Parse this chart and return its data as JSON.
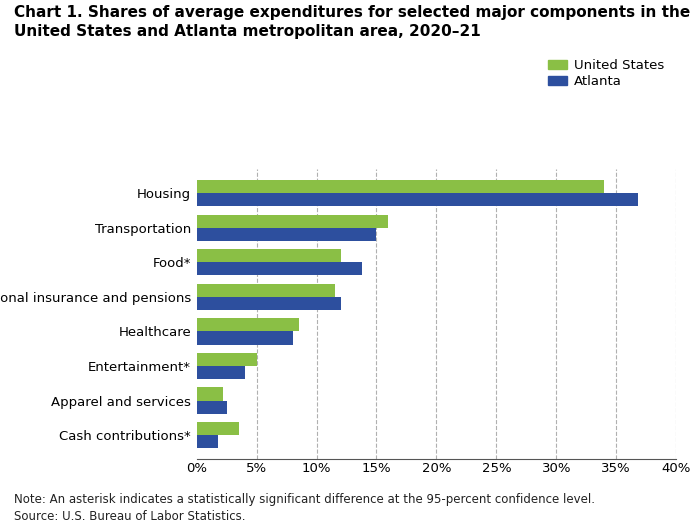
{
  "title": "Chart 1. Shares of average expenditures for selected major components in the\nUnited States and Atlanta metropolitan area, 2020–21",
  "categories": [
    "Cash contributions*",
    "Apparel and services",
    "Entertainment*",
    "Healthcare",
    "Personal insurance and pensions",
    "Food*",
    "Transportation",
    "Housing"
  ],
  "us_values": [
    3.5,
    2.2,
    5.0,
    8.5,
    11.5,
    12.0,
    16.0,
    34.0
  ],
  "atlanta_values": [
    1.8,
    2.5,
    4.0,
    8.0,
    12.0,
    13.8,
    15.0,
    36.8
  ],
  "us_color": "#8ABF45",
  "atlanta_color": "#2D4F9E",
  "legend_us": "United States",
  "legend_atlanta": "Atlanta",
  "xlim": [
    0,
    40
  ],
  "xticks": [
    0,
    5,
    10,
    15,
    20,
    25,
    30,
    35,
    40
  ],
  "note": "Note: An asterisk indicates a statistically significant difference at the 95-percent confidence level.\nSource: U.S. Bureau of Labor Statistics.",
  "background_color": "#ffffff",
  "grid_color": "#b0b0b0",
  "title_fontsize": 11,
  "label_fontsize": 9.5,
  "tick_fontsize": 9.5,
  "note_fontsize": 8.5
}
